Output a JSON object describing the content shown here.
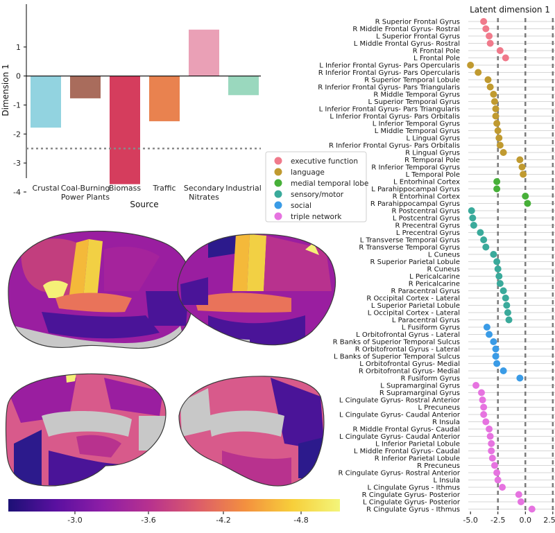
{
  "chart_data": [
    {
      "type": "bar",
      "ylabel": "Dimension 1",
      "xlabel": "Source",
      "ylim": [
        -4,
        2
      ],
      "yticks": [
        1,
        0,
        -1,
        -2,
        -3,
        -4
      ],
      "reference_line": -2.5,
      "categories": [
        "Crustal",
        "Coal-Burning\nPower Plants",
        "Biomass",
        "Traffic",
        "Secondary\nNitrates",
        "Industrial"
      ],
      "values": [
        -1.78,
        -0.77,
        -3.73,
        -1.56,
        1.6,
        -0.66
      ],
      "colors": [
        "#92d3e0",
        "#a96c5c",
        "#d53d5d",
        "#e9824f",
        "#eaa0b6",
        "#9ad8be"
      ]
    },
    {
      "type": "scatter",
      "title": "Latent dimension 1",
      "xlim": [
        -5.2,
        2.7
      ],
      "xticks": [
        "-5.0",
        "-2.5",
        "0.0",
        "2.5"
      ],
      "reference_lines": [
        -2.5,
        0.0,
        2.5
      ],
      "legend_position": "left",
      "groups": [
        {
          "name": "executive function",
          "color": "#f07a8b"
        },
        {
          "name": "language",
          "color": "#c09a30"
        },
        {
          "name": "medial temporal lobe",
          "color": "#47b039"
        },
        {
          "name": "sensory/motor",
          "color": "#3aaa9b"
        },
        {
          "name": "social",
          "color": "#3a9be6"
        },
        {
          "name": "triple network",
          "color": "#e673e0"
        }
      ],
      "points": [
        {
          "region": "R Superior Frontal Gyrus",
          "group": 0,
          "value": -3.8
        },
        {
          "region": "R Middle Frontal Gyrus- Rostral",
          "group": 0,
          "value": -3.6
        },
        {
          "region": "L Superior Frontal Gyrus",
          "group": 0,
          "value": -3.3
        },
        {
          "region": "L Middle Frontal Gyrus- Rostral",
          "group": 0,
          "value": -3.2
        },
        {
          "region": "R Frontal Pole",
          "group": 0,
          "value": -2.3
        },
        {
          "region": "L Frontal Pole",
          "group": 0,
          "value": -1.8
        },
        {
          "region": "L Inferior Frontal Gyrus- Pars Opercularis",
          "group": 1,
          "value": -5.0
        },
        {
          "region": "R Inferior Frontal Gyrus- Pars Opercularis",
          "group": 1,
          "value": -4.3
        },
        {
          "region": "R Superior Temporal Lobule",
          "group": 1,
          "value": -3.4
        },
        {
          "region": "R Inferior Frontal Gyrus- Pars Triangularis",
          "group": 1,
          "value": -3.2
        },
        {
          "region": "R Middle Temporal Gyrus",
          "group": 1,
          "value": -2.9
        },
        {
          "region": "L Superior Temporal Gyrus",
          "group": 1,
          "value": -2.8
        },
        {
          "region": "L Inferior Frontal Gyrus- Pars Triangularis",
          "group": 1,
          "value": -2.7
        },
        {
          "region": "L Inferior Frontal Gyrus- Pars Orbitalis",
          "group": 1,
          "value": -2.7
        },
        {
          "region": "L Inferior Temporal Gyrus",
          "group": 1,
          "value": -2.6
        },
        {
          "region": "L Middle Temporal Gyrus",
          "group": 1,
          "value": -2.5
        },
        {
          "region": "L Lingual Gyrus",
          "group": 1,
          "value": -2.4
        },
        {
          "region": "R Inferior Frontal Gyrus- Pars Orbitalis",
          "group": 1,
          "value": -2.3
        },
        {
          "region": "R Lingual Gyrus",
          "group": 1,
          "value": -2.0
        },
        {
          "region": "R Temporal Pole",
          "group": 1,
          "value": -0.5
        },
        {
          "region": "R Inferior Temporal Gyrus",
          "group": 1,
          "value": -0.3
        },
        {
          "region": "L Temporal Pole",
          "group": 1,
          "value": -0.2
        },
        {
          "region": "L Entorhinal Cortex",
          "group": 2,
          "value": -2.6
        },
        {
          "region": "L Parahippocampal Gyrus",
          "group": 2,
          "value": -2.6
        },
        {
          "region": "R Entorhinal Cortex",
          "group": 2,
          "value": 0.0
        },
        {
          "region": "R Parahippocampal Gyrus",
          "group": 2,
          "value": 0.2
        },
        {
          "region": "R Postcentral Gyrus",
          "group": 3,
          "value": -4.9
        },
        {
          "region": "L Postcentral Gyrus",
          "group": 3,
          "value": -4.8
        },
        {
          "region": "R Precentral Gyrus",
          "group": 3,
          "value": -4.7
        },
        {
          "region": "L Precentral Gyrus",
          "group": 3,
          "value": -4.1
        },
        {
          "region": "L Transverse Temporal Gyrus",
          "group": 3,
          "value": -3.8
        },
        {
          "region": "R Transverse Temporal Gyrus",
          "group": 3,
          "value": -3.6
        },
        {
          "region": "L Cuneus",
          "group": 3,
          "value": -2.9
        },
        {
          "region": "R Superior Parietal Lobule",
          "group": 3,
          "value": -2.6
        },
        {
          "region": "R Cuneus",
          "group": 3,
          "value": -2.5
        },
        {
          "region": "L Pericalcarine",
          "group": 3,
          "value": -2.4
        },
        {
          "region": "R Pericalcarine",
          "group": 3,
          "value": -2.3
        },
        {
          "region": "R Paracentral Gyrus",
          "group": 3,
          "value": -2.0
        },
        {
          "region": "R Occipital Cortex - Lateral",
          "group": 3,
          "value": -1.8
        },
        {
          "region": "L Superior Parietal Lobule",
          "group": 3,
          "value": -1.7
        },
        {
          "region": "L Occipital Cortex - Lateral",
          "group": 3,
          "value": -1.6
        },
        {
          "region": "L Paracentral Gyrus",
          "group": 3,
          "value": -1.5
        },
        {
          "region": "L Fusiform Gyrus",
          "group": 4,
          "value": -3.5
        },
        {
          "region": "L Orbitofrontal Gyrus - Lateral",
          "group": 4,
          "value": -3.3
        },
        {
          "region": "R Banks of Superior Temporal Sulcus",
          "group": 4,
          "value": -2.9
        },
        {
          "region": "R Orbitofrontal Gyrus - Lateral",
          "group": 4,
          "value": -2.7
        },
        {
          "region": "L Banks of Superior Temporal Sulcus",
          "group": 4,
          "value": -2.7
        },
        {
          "region": "L Orbitofrontal Gyrus- Medial",
          "group": 4,
          "value": -2.6
        },
        {
          "region": "R Orbitofrontal Gyrus- Medial",
          "group": 4,
          "value": -2.0
        },
        {
          "region": "R Fusiform Gyrus",
          "group": 4,
          "value": -0.5
        },
        {
          "region": "L Supramarginal Gyrus",
          "group": 5,
          "value": -4.5
        },
        {
          "region": "R Supramarginal Gyrus",
          "group": 5,
          "value": -4.0
        },
        {
          "region": "L Cingulate Gyrus- Rostral Anterior",
          "group": 5,
          "value": -3.9
        },
        {
          "region": "L Precuneus",
          "group": 5,
          "value": -3.8
        },
        {
          "region": "L Cingulate Gyrus- Caudal Anterior",
          "group": 5,
          "value": -3.8
        },
        {
          "region": "R Insula",
          "group": 5,
          "value": -3.6
        },
        {
          "region": "R Middle Frontal Gyrus- Caudal",
          "group": 5,
          "value": -3.3
        },
        {
          "region": "L Cingulate Gyrus- Caudal Anterior",
          "group": 5,
          "value": -3.2
        },
        {
          "region": "L Inferior Parietal Lobule",
          "group": 5,
          "value": -3.1
        },
        {
          "region": "L Middle Frontal Gyrus- Caudal",
          "group": 5,
          "value": -3.1
        },
        {
          "region": "R Inferior Parietal Lobule",
          "group": 5,
          "value": -3.0
        },
        {
          "region": "R Precuneus",
          "group": 5,
          "value": -2.8
        },
        {
          "region": "R Cingulate Gyrus- Rostral Anterior",
          "group": 5,
          "value": -2.6
        },
        {
          "region": "L Insula",
          "group": 5,
          "value": -2.5
        },
        {
          "region": "L Cingulate Gyrus - Ithmus",
          "group": 5,
          "value": -2.1
        },
        {
          "region": "R Cingulate Gyrus- Posterior",
          "group": 5,
          "value": -0.6
        },
        {
          "region": "L Cingulate Gyrus- Posterior",
          "group": 5,
          "value": -0.4
        },
        {
          "region": "R Cingulate Gyrus - Ithmus",
          "group": 5,
          "value": 0.6
        }
      ]
    }
  ],
  "colorbar": {
    "ticks": [
      "-3.0",
      "-3.6",
      "-4.2",
      "-4.8"
    ],
    "gradient": [
      "#1c1075",
      "#5a10a0",
      "#8e1ea6",
      "#b8328e",
      "#dc5c6a",
      "#f3903f",
      "#f7cf3a",
      "#f3f57a"
    ]
  },
  "brain_palette": {
    "cortex": "#9a1ea0",
    "gray": "#c8c8c8",
    "frontal": "#c23e7e",
    "motor": "#f4b93a",
    "post": "#f2d044",
    "temporal": "#e9735a",
    "deep": "#4a1498",
    "darkblue": "#2c1a8c",
    "yellow": "#f5f077",
    "pink": "#d85a8b"
  }
}
